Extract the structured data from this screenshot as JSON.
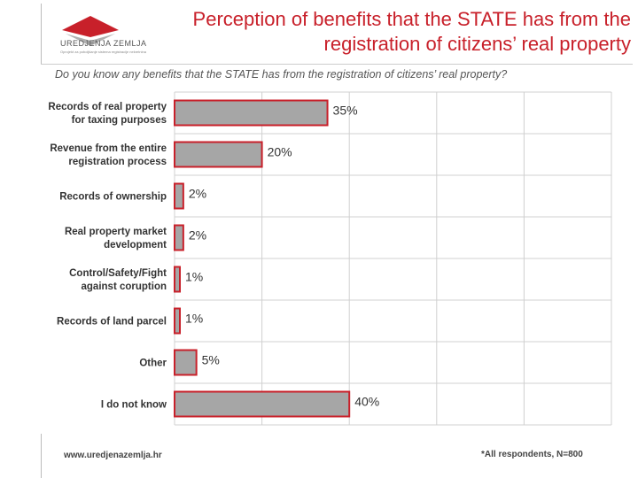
{
  "logo": {
    "text": "UREDJENJA ZEMLJA",
    "subtext": "Oprojekt za poboljšanje sistema registracije nekretnina"
  },
  "header": {
    "title_line1": "Perception of benefits that the STATE has from the",
    "title_line2": "registration of citizens’ real property"
  },
  "question": "Do you know any benefits that the STATE has from the registration of citizens’ real property?",
  "footer": {
    "url": "www.uredjenazemlja.hr",
    "note": "*All respondents, N=800"
  },
  "colors": {
    "bar_fill": "#a6a6a6",
    "bar_border": "#c8202a",
    "title": "#c8202a",
    "grid": "#d0d0d0"
  },
  "chart_data": {
    "type": "bar",
    "orientation": "horizontal",
    "categories": [
      [
        "Records of real property",
        "for taxing purposes"
      ],
      [
        "Revenue from the entire",
        "registration process"
      ],
      [
        "Records of ownership"
      ],
      [
        "Real property market",
        "development"
      ],
      [
        "Control/Safety/Fight",
        "against coruption"
      ],
      [
        "Records of land parcel"
      ],
      [
        "Other"
      ],
      [
        "I do not know"
      ]
    ],
    "values": [
      35,
      20,
      2,
      2,
      1,
      1,
      5,
      40
    ],
    "labels": [
      "35%",
      "20%",
      "2%",
      "2%",
      "1%",
      "1%",
      "5%",
      "40%"
    ],
    "xlim": [
      0,
      100
    ],
    "grid": true
  }
}
